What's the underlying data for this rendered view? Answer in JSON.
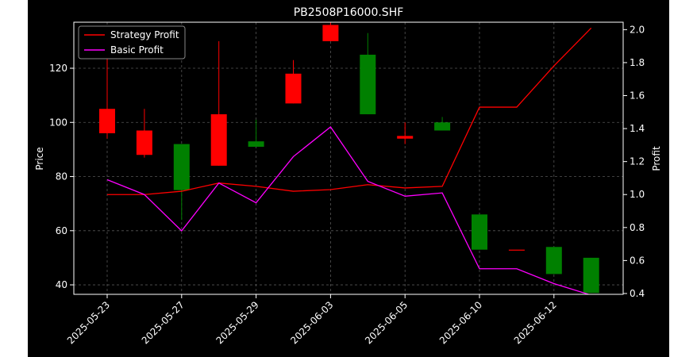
{
  "chart_data": {
    "type": "candlestick",
    "title": "PB2508P16000.SHF",
    "ylabel": "Price",
    "y2label": "Profit",
    "ylim": [
      36.5,
      137
    ],
    "y2lim": [
      0.395,
      2.045
    ],
    "yticks": [
      40,
      60,
      80,
      100,
      120
    ],
    "y2ticks": [
      "0.4",
      "0.6",
      "0.8",
      "1.0",
      "1.2",
      "1.4",
      "1.6",
      "1.8",
      "2.0"
    ],
    "xticklabels": [
      "2025-05-23",
      "2025-05-27",
      "2025-05-29",
      "2025-06-03",
      "2025-06-05",
      "2025-06-10",
      "2025-06-12"
    ],
    "grid": true,
    "legend_position": "upper left",
    "colors": {
      "background": "#000000",
      "up": "#ff0000",
      "down": "#008000",
      "strategy": "#ff0000",
      "basic": "#ff00ff",
      "text": "#ffffff",
      "grid": "#555555"
    },
    "candles": [
      {
        "open": 96,
        "high": 133,
        "low": 94,
        "close": 105
      },
      {
        "open": 88,
        "high": 105,
        "low": 87,
        "close": 97
      },
      {
        "open": 92,
        "high": 92,
        "low": 64,
        "close": 75
      },
      {
        "open": 84,
        "high": 130,
        "low": 84,
        "close": 103
      },
      {
        "open": 93,
        "high": 101,
        "low": 91,
        "close": 91
      },
      {
        "open": 107,
        "high": 123,
        "low": 107,
        "close": 118
      },
      {
        "open": 130,
        "high": 140,
        "low": 130,
        "close": 136
      },
      {
        "open": 125,
        "high": 133,
        "low": 103,
        "close": 103
      },
      {
        "open": 94,
        "high": 100,
        "low": 92,
        "close": 95
      },
      {
        "open": 100,
        "high": 102,
        "low": 97,
        "close": 97
      },
      {
        "open": 66,
        "high": 66,
        "low": 53,
        "close": 53
      },
      {
        "open": 53,
        "high": 53,
        "low": 53,
        "close": 53
      },
      {
        "open": 54,
        "high": 54,
        "low": 44,
        "close": 44
      },
      {
        "open": 50,
        "high": 50,
        "low": 37,
        "close": 37
      }
    ],
    "series": [
      {
        "name": "Strategy Profit",
        "values": [
          1.0,
          1.0,
          1.02,
          1.07,
          1.05,
          1.02,
          1.03,
          1.06,
          1.04,
          1.05,
          1.53,
          1.53,
          1.78,
          2.01
        ]
      },
      {
        "name": "Basic Profit",
        "values": [
          1.09,
          1.0,
          0.78,
          1.07,
          0.95,
          1.23,
          1.41,
          1.08,
          0.99,
          1.01,
          0.55,
          0.55,
          0.46,
          0.39
        ]
      }
    ]
  }
}
